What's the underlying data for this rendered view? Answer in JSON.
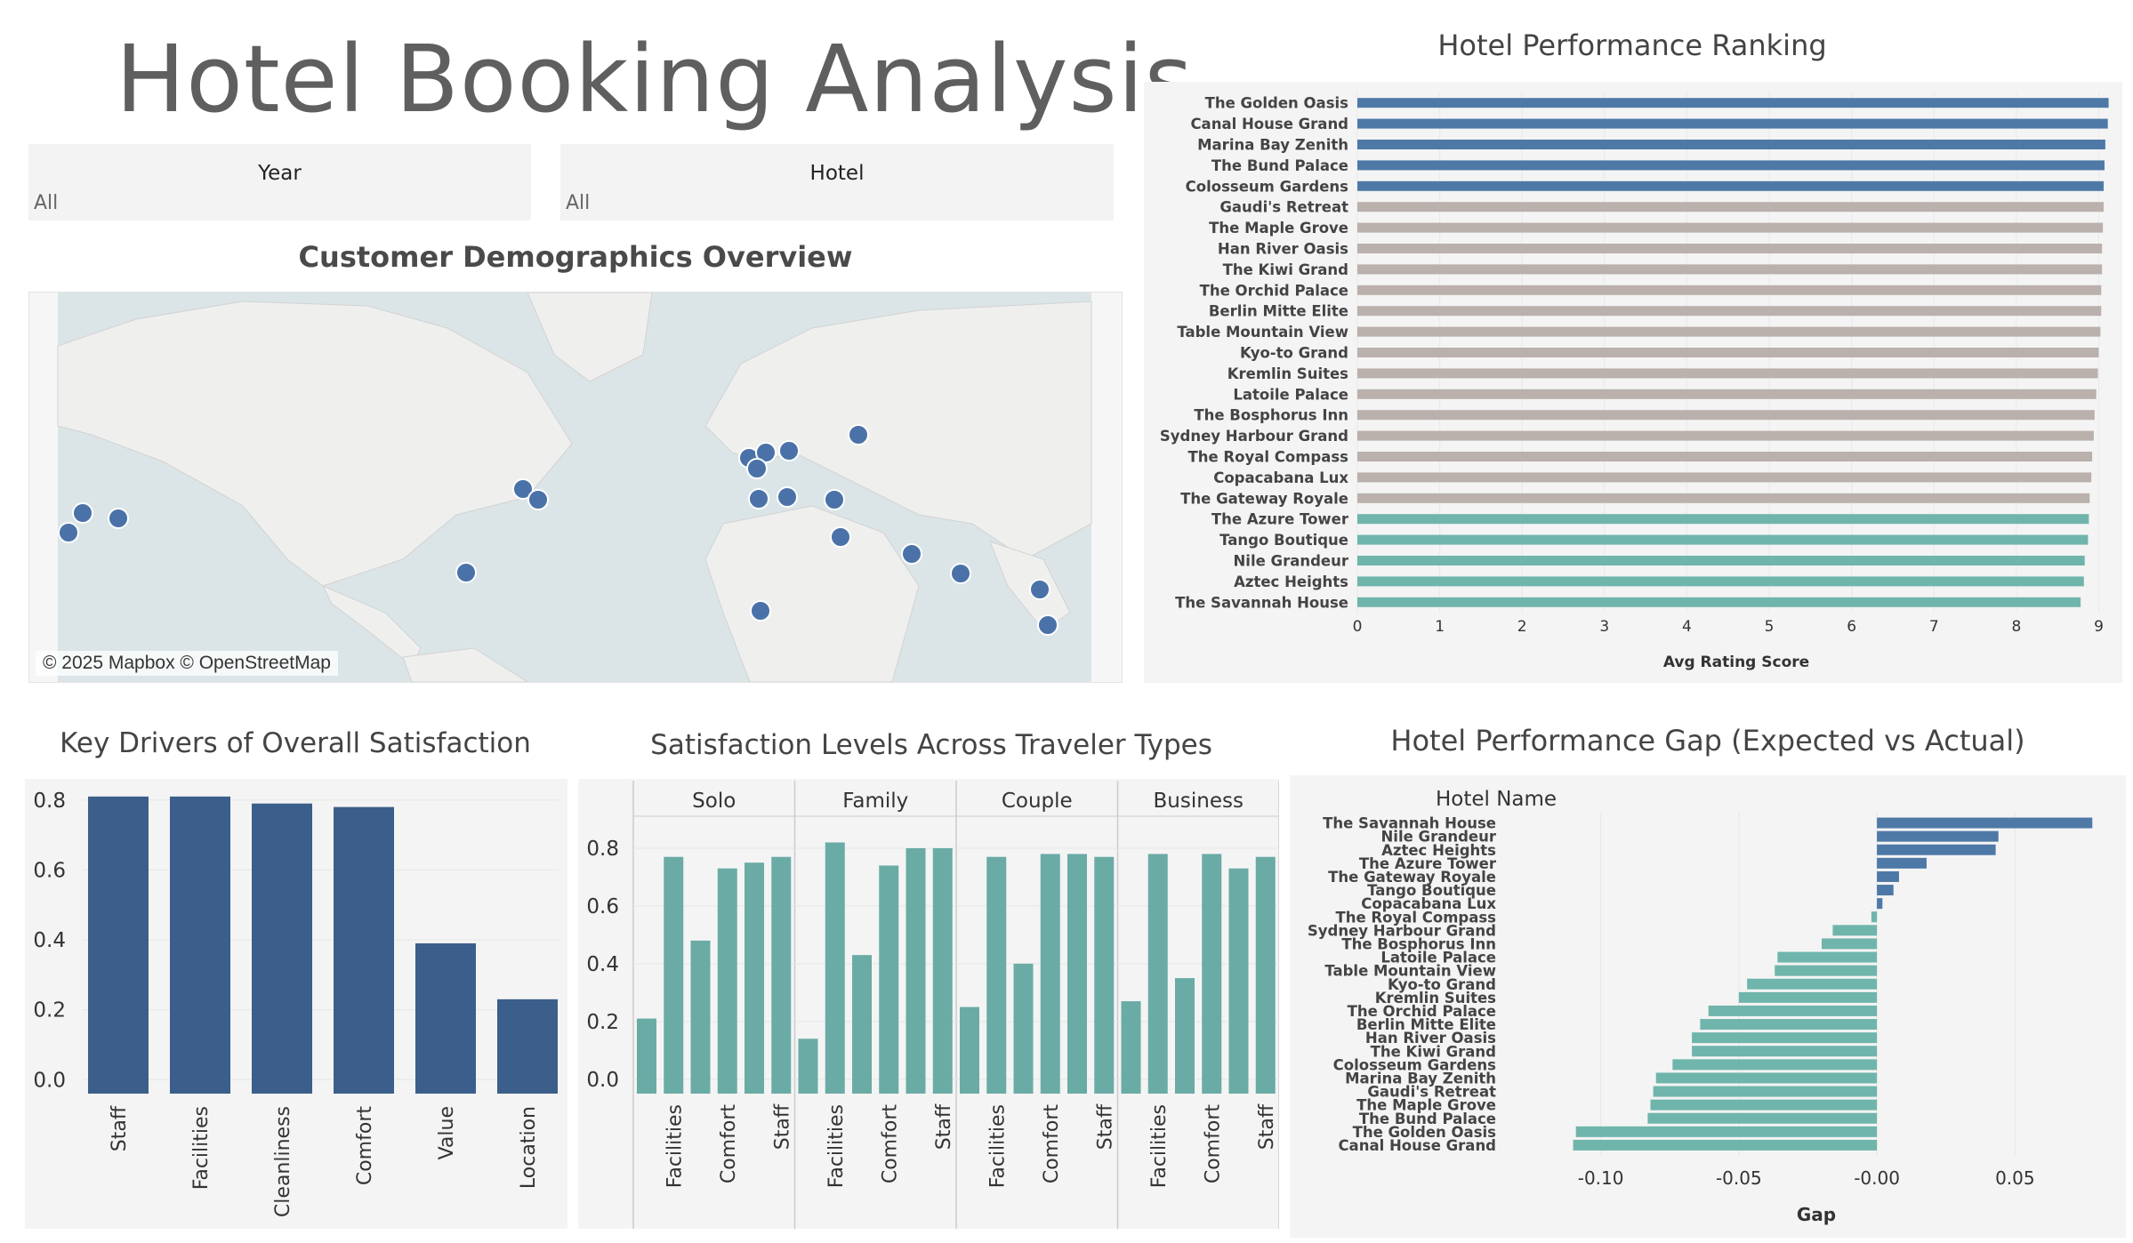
{
  "dashboard": {
    "title": "Hotel Booking Analysis"
  },
  "filters": [
    {
      "label": "Year",
      "value": "All"
    },
    {
      "label": "Hotel",
      "value": "All"
    }
  ],
  "map": {
    "title": "Customer Demographics Overview",
    "credit": "© 2025 Mapbox © OpenStreetMap"
  },
  "colors": {
    "top": "#4e79a7",
    "mid": "#bab0ac",
    "bottom": "#6fb5ab",
    "drivers": "#3b5f8a",
    "traveler": "#6aaba5",
    "map_dot": "#4a72a8"
  },
  "chart_data": [
    {
      "id": "ranking",
      "type": "bar",
      "orientation": "horizontal",
      "title": "Hotel Performance Ranking",
      "xlabel": "Avg Rating Score",
      "xlim": [
        0,
        9.2
      ],
      "xticks": [
        "0",
        "1",
        "2",
        "3",
        "4",
        "5",
        "6",
        "7",
        "8",
        "9"
      ],
      "categories": [
        "The Golden Oasis",
        "Canal House Grand",
        "Marina Bay Zenith",
        "The Bund Palace",
        "Colosseum Gardens",
        "Gaudi's Retreat",
        "The Maple Grove",
        "Han River Oasis",
        "The Kiwi Grand",
        "The Orchid Palace",
        "Berlin Mitte Elite",
        "Table Mountain View",
        "Kyo-to Grand",
        "Kremlin Suites",
        "Latoile Palace",
        "The Bosphorus Inn",
        "Sydney Harbour Grand",
        "The Royal Compass",
        "Copacabana Lux",
        "The Gateway Royale",
        "The Azure Tower",
        "Tango Boutique",
        "Nile Grandeur",
        "Aztec Heights",
        "The Savannah House"
      ],
      "values": [
        9.12,
        9.11,
        9.08,
        9.07,
        9.06,
        9.06,
        9.05,
        9.04,
        9.04,
        9.03,
        9.03,
        9.02,
        9.0,
        8.99,
        8.97,
        8.95,
        8.94,
        8.92,
        8.91,
        8.89,
        8.88,
        8.87,
        8.83,
        8.82,
        8.78
      ],
      "groups": [
        "top",
        "top",
        "top",
        "top",
        "top",
        "mid",
        "mid",
        "mid",
        "mid",
        "mid",
        "mid",
        "mid",
        "mid",
        "mid",
        "mid",
        "mid",
        "mid",
        "mid",
        "mid",
        "mid",
        "bottom",
        "bottom",
        "bottom",
        "bottom",
        "bottom"
      ]
    },
    {
      "id": "drivers",
      "type": "bar",
      "title": "Key Drivers of Overall Satisfaction",
      "categories": [
        "Staff",
        "Facilities",
        "Cleanliness",
        "Comfort",
        "Value",
        "Location"
      ],
      "values": [
        0.81,
        0.81,
        0.79,
        0.78,
        0.39,
        0.23
      ],
      "ylim": [
        -0.04,
        0.83
      ],
      "yticks": [
        "0.0",
        "0.2",
        "0.4",
        "0.6",
        "0.8"
      ]
    },
    {
      "id": "traveler",
      "type": "bar",
      "title": "Satisfaction Levels Across Traveler Types",
      "facets": [
        "Solo",
        "Family",
        "Couple",
        "Business"
      ],
      "ylim": [
        -0.05,
        0.88
      ],
      "yticks": [
        "0.0",
        "0.2",
        "0.4",
        "0.6",
        "0.8"
      ],
      "tick_labels": [
        "Facilities",
        "Comfort",
        "Staff"
      ],
      "series": [
        {
          "facet": "Solo",
          "values": [
            0.21,
            0.77,
            0.48,
            0.73,
            0.75,
            0.77
          ]
        },
        {
          "facet": "Family",
          "values": [
            0.14,
            0.82,
            0.43,
            0.74,
            0.8,
            0.8
          ]
        },
        {
          "facet": "Couple",
          "values": [
            0.25,
            0.77,
            0.4,
            0.78,
            0.78,
            0.77
          ]
        },
        {
          "facet": "Business",
          "values": [
            0.27,
            0.78,
            0.35,
            0.78,
            0.73,
            0.77
          ]
        }
      ]
    },
    {
      "id": "gap",
      "type": "bar",
      "orientation": "horizontal",
      "title": "Hotel Performance Gap (Expected vs Actual)",
      "ylabel": "Hotel Name",
      "xlabel": "Gap",
      "xlim": [
        -0.125,
        0.085
      ],
      "xticks": [
        {
          "value": -0.1,
          "label": "-0.10"
        },
        {
          "value": -0.05,
          "label": "-0.05"
        },
        {
          "value": 0.0,
          "label": "-0.00"
        },
        {
          "value": 0.05,
          "label": "0.05"
        }
      ],
      "categories": [
        "The Savannah House",
        "Nile Grandeur",
        "Aztec Heights",
        "The Azure Tower",
        "The Gateway Royale",
        "Tango Boutique",
        "Copacabana Lux",
        "The Royal Compass",
        "Sydney Harbour Grand",
        "The Bosphorus Inn",
        "Latoile Palace",
        "Table Mountain View",
        "Kyo-to Grand",
        "Kremlin Suites",
        "The Orchid Palace",
        "Berlin Mitte Elite",
        "Han River Oasis",
        "The Kiwi Grand",
        "Colosseum Gardens",
        "Marina Bay Zenith",
        "Gaudi's Retreat",
        "The Maple Grove",
        "The Bund Palace",
        "The Golden Oasis",
        "Canal House Grand"
      ],
      "values": [
        0.078,
        0.044,
        0.043,
        0.018,
        0.008,
        0.006,
        0.002,
        -0.002,
        -0.016,
        -0.02,
        -0.036,
        -0.037,
        -0.047,
        -0.05,
        -0.061,
        -0.064,
        -0.067,
        -0.067,
        -0.074,
        -0.08,
        -0.081,
        -0.082,
        -0.083,
        -0.109,
        -0.11
      ]
    }
  ]
}
